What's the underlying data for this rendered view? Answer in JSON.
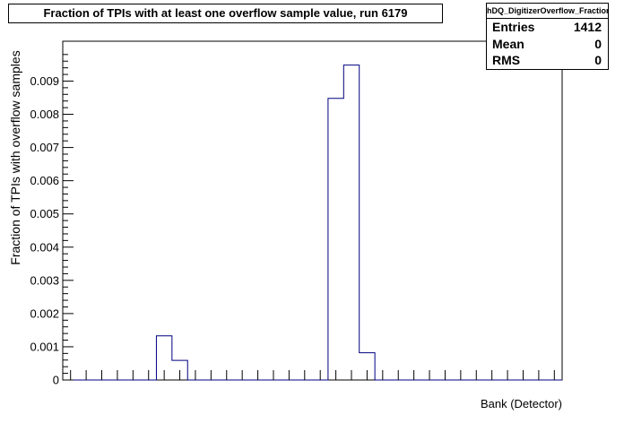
{
  "chart_data": {
    "type": "bar",
    "title": "Fraction of TPIs with at least one overflow sample value, run 6179",
    "xlabel": "Bank (Detector)",
    "ylabel": "Fraction of TPIs with overflow samples",
    "ylim": [
      0,
      0.0102
    ],
    "yticks": [
      0,
      0.001,
      0.002,
      0.003,
      0.004,
      0.005,
      0.006,
      0.007,
      0.008,
      0.009
    ],
    "ytick_labels": [
      "0",
      "0.001",
      "0.002",
      "0.003",
      "0.004",
      "0.005",
      "0.006",
      "0.007",
      "0.008",
      "0.009"
    ],
    "values": [
      0,
      0,
      0,
      0,
      0,
      0,
      0,
      0,
      0,
      0,
      0,
      0,
      0,
      0,
      0,
      0,
      0,
      0,
      0,
      0,
      0.00848,
      0.00948,
      0.00082,
      0,
      0,
      0,
      0,
      0,
      0,
      0,
      0,
      0,
      0,
      0,
      0
    ],
    "values_note_indices_5_6": [
      0.00133,
      0.00059
    ],
    "bar_color": "#000080",
    "grid": false
  },
  "stats": {
    "name": "hDQ_DigitizerOverflow_Fraction",
    "rows": [
      {
        "label": "Entries",
        "value": "1412"
      },
      {
        "label": "Mean",
        "value": "0"
      },
      {
        "label": "RMS",
        "value": "0"
      }
    ]
  }
}
